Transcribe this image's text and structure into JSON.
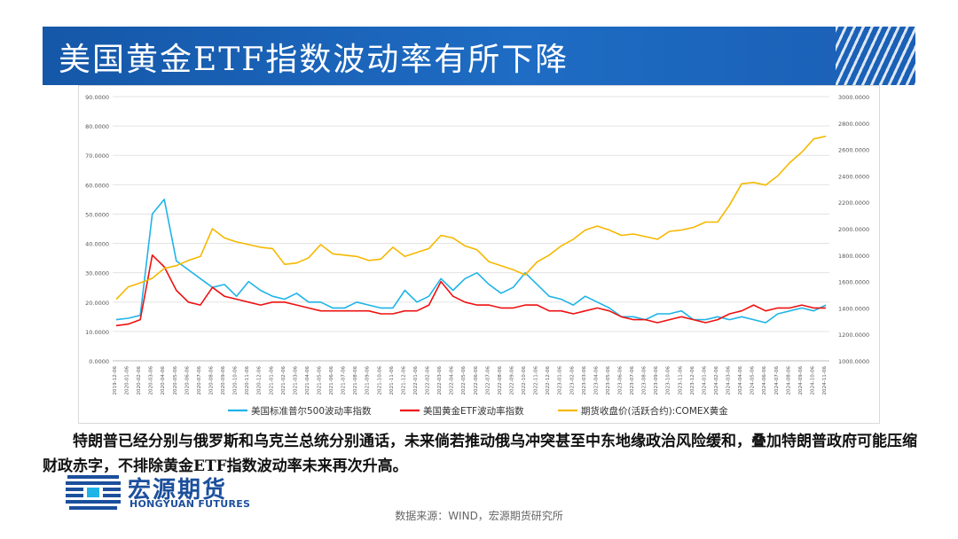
{
  "title": "美国黄金ETF指数波动率有所下降",
  "body_text": "特朗普已经分别与俄罗斯和乌克兰总统分别通话，未来倘若推动俄乌冲突甚至中东地缘政治风险缓和，叠加特朗普政府可能压缩财政赤字，不排除黄金ETF指数波动率未来再次升高。",
  "logo": {
    "cn": "宏源期货",
    "en": "HONGYUAN FUTURES"
  },
  "source": "数据来源：WIND，宏源期货研究所",
  "colors": {
    "vix": "#1fb4e8",
    "gvz": "#ee1111",
    "gold": "#f5b800",
    "title_bar": "#1a5fb5"
  },
  "chart_data": {
    "type": "line",
    "y_left": {
      "range": [
        0,
        90
      ],
      "ticks": [
        "0.0000",
        "10.0000",
        "20.0000",
        "30.0000",
        "40.0000",
        "50.0000",
        "60.0000",
        "70.0000",
        "80.0000",
        "90.0000"
      ]
    },
    "y_right": {
      "range": [
        1000,
        3000
      ],
      "ticks": [
        "1000.0000",
        "1200.0000",
        "1400.0000",
        "1600.0000",
        "1800.0000",
        "2000.0000",
        "2200.0000",
        "2400.0000",
        "2600.0000",
        "2800.0000",
        "3000.0000"
      ]
    },
    "x_ticks": [
      "2019-12-06",
      "2020-01-06",
      "2020-02-06",
      "2020-03-06",
      "2020-04-06",
      "2020-05-06",
      "2020-06-06",
      "2020-07-06",
      "2020-08-06",
      "2020-09-06",
      "2020-10-06",
      "2020-11-06",
      "2020-12-06",
      "2021-01-06",
      "2021-02-06",
      "2021-03-06",
      "2021-04-06",
      "2021-05-06",
      "2021-06-06",
      "2021-07-06",
      "2021-08-06",
      "2021-09-06",
      "2021-10-06",
      "2021-11-06",
      "2021-12-06",
      "2022-01-06",
      "2022-02-06",
      "2022-03-06",
      "2022-04-06",
      "2022-05-06",
      "2022-06-06",
      "2022-07-06",
      "2022-08-06",
      "2022-09-06",
      "2022-10-06",
      "2022-11-06",
      "2022-12-06",
      "2023-01-06",
      "2023-02-06",
      "2023-03-06",
      "2023-04-06",
      "2023-05-06",
      "2023-06-06",
      "2023-07-06",
      "2023-08-06",
      "2023-09-06",
      "2023-10-06",
      "2023-11-06",
      "2023-12-06",
      "2024-01-06",
      "2024-02-06",
      "2024-03-06",
      "2024-04-06",
      "2024-05-06",
      "2024-06-06",
      "2024-07-06",
      "2024-08-06",
      "2024-09-06",
      "2024-10-06",
      "2024-11-06"
    ],
    "grid": "horizontal",
    "legend_position": "bottom",
    "series": [
      {
        "name": "美国标准普尔500波动率指数",
        "axis": "left",
        "values": [
          14,
          14.5,
          15.5,
          50,
          55,
          34,
          31,
          28,
          25,
          26,
          22,
          27,
          24,
          22,
          21,
          23,
          20,
          20,
          18,
          18,
          20,
          19,
          18,
          18,
          24,
          20,
          22,
          28,
          24,
          28,
          30,
          26,
          23,
          25,
          30,
          26,
          22,
          21,
          19,
          22,
          20,
          18,
          15,
          15,
          14,
          16,
          16,
          17,
          14,
          14,
          15,
          14,
          15,
          14,
          13,
          16,
          17,
          18,
          17,
          19
        ]
      },
      {
        "name": "美国黄金ETF波动率指数",
        "axis": "left",
        "values": [
          12,
          12.5,
          14,
          36,
          32,
          24,
          20,
          19,
          25,
          22,
          21,
          20,
          19,
          20,
          20,
          19,
          18,
          17,
          17,
          17,
          17,
          17,
          16,
          16,
          17,
          17,
          19,
          27,
          22,
          20,
          19,
          19,
          18,
          18,
          19,
          19,
          17,
          17,
          16,
          17,
          18,
          17,
          15,
          14,
          14,
          13,
          14,
          15,
          14,
          13,
          14,
          16,
          17,
          19,
          17,
          18,
          18,
          19,
          18,
          18
        ]
      },
      {
        "name": "期货收盘价(活跃合约):COMEX黄金",
        "axis": "right",
        "values": [
          1465,
          1560,
          1590,
          1625,
          1700,
          1720,
          1760,
          1790,
          2000,
          1930,
          1900,
          1880,
          1860,
          1850,
          1730,
          1740,
          1780,
          1880,
          1810,
          1800,
          1790,
          1760,
          1770,
          1860,
          1790,
          1820,
          1850,
          1950,
          1930,
          1870,
          1840,
          1750,
          1720,
          1690,
          1650,
          1750,
          1800,
          1870,
          1920,
          1990,
          2020,
          1990,
          1950,
          1960,
          1940,
          1920,
          1980,
          1990,
          2010,
          2050,
          2050,
          2180,
          2340,
          2350,
          2330,
          2400,
          2500,
          2580,
          2680,
          2700
        ]
      }
    ]
  }
}
